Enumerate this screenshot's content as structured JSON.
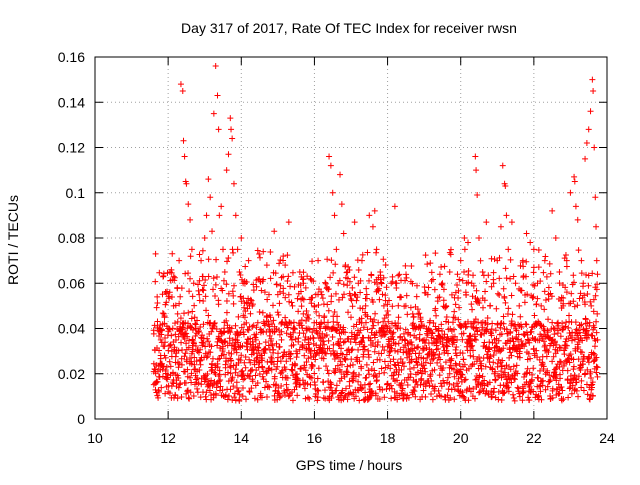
{
  "chart_data": {
    "type": "scatter",
    "title": "Day 317 of 2017, Rate Of TEC Index for receiver rwsn",
    "xlabel": "GPS time / hours",
    "ylabel": "ROTI / TECUs",
    "xlim": [
      10,
      24
    ],
    "ylim": [
      0,
      0.16
    ],
    "xticks": [
      10,
      12,
      14,
      16,
      18,
      20,
      22,
      24
    ],
    "yticks": [
      0,
      0.02,
      0.04,
      0.06,
      0.08,
      0.1,
      0.12,
      0.14,
      0.16
    ],
    "ytick_labels": [
      "0",
      "0.02",
      "0.04",
      "0.06",
      "0.08",
      "0.1",
      "0.12",
      "0.14",
      "0.16"
    ],
    "grid": true,
    "marker": "+",
    "color": "#ff0000",
    "x_range_of_data": [
      11.6,
      23.75
    ],
    "series": [
      {
        "name": "ROTI",
        "points": [
          [
            11.7,
            0.054
          ],
          [
            11.75,
            0.012
          ],
          [
            11.8,
            0.035
          ],
          [
            11.85,
            0.022
          ],
          [
            11.9,
            0.045
          ],
          [
            11.95,
            0.018
          ],
          [
            12.0,
            0.04
          ],
          [
            12.05,
            0.065
          ],
          [
            12.1,
            0.03
          ],
          [
            12.15,
            0.05
          ],
          [
            12.2,
            0.025
          ],
          [
            12.25,
            0.058
          ],
          [
            12.3,
            0.07
          ],
          [
            12.35,
            0.148
          ],
          [
            12.4,
            0.145
          ],
          [
            12.42,
            0.123
          ],
          [
            12.45,
            0.116
          ],
          [
            12.48,
            0.105
          ],
          [
            12.5,
            0.104
          ],
          [
            12.55,
            0.095
          ],
          [
            12.6,
            0.088
          ],
          [
            12.65,
            0.075
          ],
          [
            12.7,
            0.06
          ],
          [
            12.75,
            0.04
          ],
          [
            12.8,
            0.03
          ],
          [
            12.85,
            0.055
          ],
          [
            12.9,
            0.07
          ],
          [
            12.95,
            0.063
          ],
          [
            13.0,
            0.08
          ],
          [
            13.05,
            0.09
          ],
          [
            13.1,
            0.106
          ],
          [
            13.15,
            0.098
          ],
          [
            13.2,
            0.083
          ],
          [
            13.25,
            0.135
          ],
          [
            13.3,
            0.156
          ],
          [
            13.35,
            0.143
          ],
          [
            13.38,
            0.128
          ],
          [
            13.4,
            0.09
          ],
          [
            13.45,
            0.094
          ],
          [
            13.5,
            0.075
          ],
          [
            13.55,
            0.065
          ],
          [
            13.6,
            0.11
          ],
          [
            13.65,
            0.117
          ],
          [
            13.7,
            0.133
          ],
          [
            13.72,
            0.128
          ],
          [
            13.75,
            0.124
          ],
          [
            13.8,
            0.104
          ],
          [
            13.85,
            0.09
          ],
          [
            13.9,
            0.075
          ],
          [
            13.95,
            0.065
          ],
          [
            14.0,
            0.08
          ],
          [
            14.05,
            0.06
          ],
          [
            14.1,
            0.045
          ],
          [
            14.2,
            0.07
          ],
          [
            14.3,
            0.05
          ],
          [
            14.4,
            0.035
          ],
          [
            14.5,
            0.025
          ],
          [
            14.6,
            0.074
          ],
          [
            14.7,
            0.068
          ],
          [
            14.8,
            0.045
          ],
          [
            14.9,
            0.083
          ],
          [
            15.0,
            0.055
          ],
          [
            15.1,
            0.035
          ],
          [
            15.2,
            0.068
          ],
          [
            15.3,
            0.087
          ],
          [
            15.4,
            0.05
          ],
          [
            15.5,
            0.03
          ],
          [
            15.6,
            0.065
          ],
          [
            15.7,
            0.06
          ],
          [
            15.8,
            0.045
          ],
          [
            15.9,
            0.03
          ],
          [
            16.0,
            0.05
          ],
          [
            16.1,
            0.07
          ],
          [
            16.2,
            0.055
          ],
          [
            16.3,
            0.04
          ],
          [
            16.4,
            0.116
          ],
          [
            16.45,
            0.112
          ],
          [
            16.5,
            0.1
          ],
          [
            16.55,
            0.09
          ],
          [
            16.6,
            0.075
          ],
          [
            16.65,
            0.06
          ],
          [
            16.7,
            0.108
          ],
          [
            16.75,
            0.095
          ],
          [
            16.8,
            0.082
          ],
          [
            16.9,
            0.065
          ],
          [
            17.0,
            0.045
          ],
          [
            17.1,
            0.087
          ],
          [
            17.2,
            0.06
          ],
          [
            17.3,
            0.07
          ],
          [
            17.4,
            0.05
          ],
          [
            17.5,
            0.09
          ],
          [
            17.6,
            0.085
          ],
          [
            17.65,
            0.092
          ],
          [
            17.7,
            0.075
          ],
          [
            17.8,
            0.065
          ],
          [
            17.9,
            0.05
          ],
          [
            18.0,
            0.04
          ],
          [
            18.1,
            0.06
          ],
          [
            18.2,
            0.094
          ],
          [
            18.3,
            0.045
          ],
          [
            18.4,
            0.035
          ],
          [
            18.5,
            0.05
          ],
          [
            18.6,
            0.03
          ],
          [
            18.7,
            0.04
          ],
          [
            18.8,
            0.025
          ],
          [
            18.9,
            0.045
          ],
          [
            19.0,
            0.035
          ],
          [
            19.1,
            0.055
          ],
          [
            19.2,
            0.03
          ],
          [
            19.3,
            0.048
          ],
          [
            19.4,
            0.04
          ],
          [
            19.5,
            0.06
          ],
          [
            19.6,
            0.05
          ],
          [
            19.7,
            0.065
          ],
          [
            19.8,
            0.045
          ],
          [
            19.9,
            0.035
          ],
          [
            20.0,
            0.07
          ],
          [
            20.1,
            0.08
          ],
          [
            20.2,
            0.078
          ],
          [
            20.3,
            0.06
          ],
          [
            20.4,
            0.116
          ],
          [
            20.42,
            0.11
          ],
          [
            20.45,
            0.099
          ],
          [
            20.5,
            0.08
          ],
          [
            20.6,
            0.065
          ],
          [
            20.7,
            0.087
          ],
          [
            20.8,
            0.05
          ],
          [
            20.9,
            0.06
          ],
          [
            21.0,
            0.07
          ],
          [
            21.1,
            0.085
          ],
          [
            21.15,
            0.112
          ],
          [
            21.2,
            0.104
          ],
          [
            21.22,
            0.103
          ],
          [
            21.25,
            0.09
          ],
          [
            21.3,
            0.075
          ],
          [
            21.35,
            0.062
          ],
          [
            21.4,
            0.087
          ],
          [
            21.5,
            0.06
          ],
          [
            21.6,
            0.05
          ],
          [
            21.7,
            0.07
          ],
          [
            21.8,
            0.082
          ],
          [
            21.9,
            0.078
          ],
          [
            22.0,
            0.075
          ],
          [
            22.1,
            0.06
          ],
          [
            22.2,
            0.05
          ],
          [
            22.3,
            0.07
          ],
          [
            22.4,
            0.055
          ],
          [
            22.5,
            0.092
          ],
          [
            22.6,
            0.08
          ],
          [
            22.7,
            0.065
          ],
          [
            22.8,
            0.05
          ],
          [
            22.9,
            0.07
          ],
          [
            23.0,
            0.1
          ],
          [
            23.1,
            0.107
          ],
          [
            23.12,
            0.105
          ],
          [
            23.15,
            0.094
          ],
          [
            23.2,
            0.088
          ],
          [
            23.3,
            0.07
          ],
          [
            23.35,
            0.06
          ],
          [
            23.4,
            0.115
          ],
          [
            23.45,
            0.122
          ],
          [
            23.5,
            0.128
          ],
          [
            23.55,
            0.136
          ],
          [
            23.6,
            0.15
          ],
          [
            23.62,
            0.145
          ],
          [
            23.65,
            0.12
          ],
          [
            23.68,
            0.098
          ],
          [
            23.7,
            0.085
          ],
          [
            23.72,
            0.07
          ],
          [
            23.74,
            0.064
          ]
        ]
      }
    ]
  }
}
